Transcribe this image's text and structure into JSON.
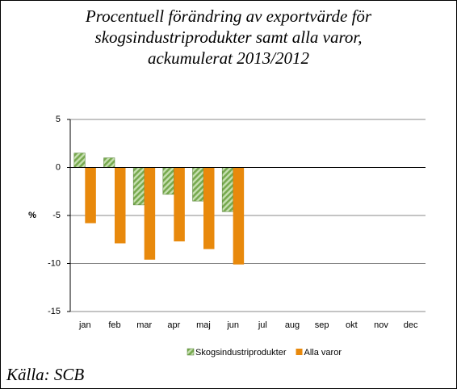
{
  "chart_data": {
    "type": "bar",
    "title": [
      "Procentuell förändring av exportvärde för",
      "skogsindustriprodukter samt alla varor,",
      "ackumulerat 2013/2012"
    ],
    "y_label": "%",
    "source": "Källa: SCB",
    "categories": [
      "jan",
      "feb",
      "mar",
      "apr",
      "maj",
      "jun",
      "jul",
      "aug",
      "sep",
      "okt",
      "nov",
      "dec"
    ],
    "series": [
      {
        "name": "Skogsindustriprodukter",
        "color": "#77a94f",
        "pattern": "hatch",
        "values": [
          1.5,
          1.0,
          -3.9,
          -2.8,
          -3.5,
          -4.6,
          null,
          null,
          null,
          null,
          null,
          null
        ]
      },
      {
        "name": "Alla varor",
        "color": "#e8890c",
        "values": [
          -5.8,
          -7.9,
          -9.6,
          -7.7,
          -8.5,
          -10.1,
          null,
          null,
          null,
          null,
          null,
          null
        ]
      }
    ],
    "ylim": [
      -15,
      5
    ],
    "yticks": [
      -15,
      -10,
      -5,
      0,
      5
    ],
    "grid": true,
    "legend": "bottom"
  }
}
